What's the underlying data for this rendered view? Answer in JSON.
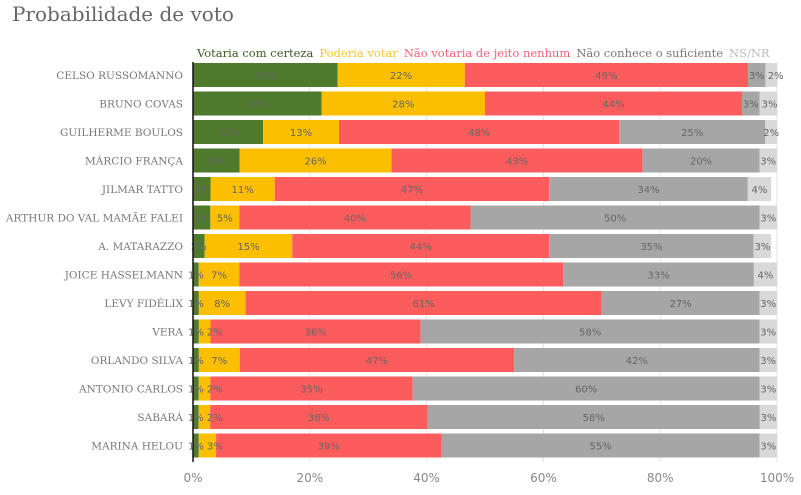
{
  "chart_data": {
    "type": "bar",
    "orientation": "horizontal",
    "stacked": true,
    "title": "Probabilidade de voto",
    "categories": [
      "CELSO RUSSOMANNO",
      "BRUNO COVAS",
      "GUILHERME BOULOS",
      "MÁRCIO FRANÇA",
      "JILMAR TATTO",
      "ARTHUR DO VAL MAMÃE FALEI",
      "A. MATARAZZO",
      "JOICE HASSELMANN",
      "LEVY FIDÉLIX",
      "VERA",
      "ORLANDO SILVA",
      "ANTONIO CARLOS",
      "SABARÁ",
      "MARINA HELOU"
    ],
    "series": [
      {
        "name": "Votaria com certeza",
        "color": "#4f7a2c",
        "values": [
          25,
          22,
          12,
          8,
          3,
          3,
          2,
          1,
          1,
          1,
          1,
          1,
          1,
          1
        ]
      },
      {
        "name": "Poderia votar",
        "color": "#fbbf00",
        "values": [
          22,
          28,
          13,
          26,
          11,
          5,
          15,
          7,
          8,
          2,
          7,
          2,
          2,
          3
        ]
      },
      {
        "name": "Não votaria de jeito nenhum",
        "color": "#fd5c5c",
        "values": [
          49,
          44,
          48,
          43,
          47,
          40,
          44,
          56,
          61,
          36,
          47,
          35,
          38,
          39
        ]
      },
      {
        "name": "Não conhece o suficiente",
        "color": "#a6a6a6",
        "values": [
          3,
          3,
          25,
          20,
          34,
          50,
          35,
          33,
          27,
          58,
          42,
          60,
          58,
          55
        ]
      },
      {
        "name": "NS/NR",
        "color": "#d9d9d9",
        "values": [
          2,
          3,
          2,
          3,
          4,
          3,
          3,
          4,
          3,
          3,
          3,
          3,
          3,
          3
        ]
      }
    ],
    "legend_text_colors": [
      "#3d5a22",
      "#f2c530",
      "#f0607a",
      "#777777",
      "#bbbbbb"
    ],
    "xlim": [
      0,
      100
    ],
    "xticks": [
      "0%",
      "20%",
      "40%",
      "60%",
      "80%",
      "100%"
    ],
    "value_suffix": "%",
    "grid": true,
    "legend_position": "top"
  }
}
